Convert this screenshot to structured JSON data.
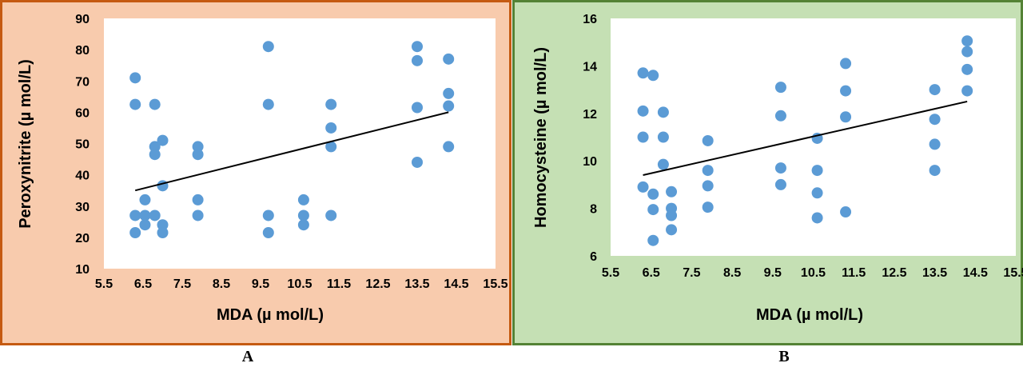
{
  "panels": [
    {
      "letter": "A",
      "frame_color": "#c55a11",
      "bg_color": "#f8cbad"
    },
    {
      "letter": "B",
      "frame_color": "#548235",
      "bg_color": "#c5e0b4"
    }
  ],
  "chart_data": [
    {
      "type": "scatter",
      "title": "",
      "xlabel": "MDA (µ mol/L)",
      "ylabel": "Peroxynitrite (µ mol/L)",
      "xlim": [
        5.5,
        15.5
      ],
      "ylim": [
        10,
        90
      ],
      "x_ticks": [
        "5.5",
        "6.5",
        "7.5",
        "8.5",
        "9.5",
        "10.5",
        "11.5",
        "12.5",
        "13.5",
        "14.5",
        "15.5"
      ],
      "y_ticks": [
        "10",
        "20",
        "30",
        "40",
        "50",
        "60",
        "70",
        "80",
        "90"
      ],
      "grid": false,
      "marker_color": "#5b9bd5",
      "points": [
        {
          "x": 6.3,
          "y": 71
        },
        {
          "x": 6.3,
          "y": 62.5
        },
        {
          "x": 6.3,
          "y": 27
        },
        {
          "x": 6.3,
          "y": 21.5
        },
        {
          "x": 6.55,
          "y": 32
        },
        {
          "x": 6.55,
          "y": 27
        },
        {
          "x": 6.55,
          "y": 24
        },
        {
          "x": 6.8,
          "y": 62.5
        },
        {
          "x": 6.8,
          "y": 49
        },
        {
          "x": 6.8,
          "y": 46.5
        },
        {
          "x": 6.8,
          "y": 27
        },
        {
          "x": 7.0,
          "y": 51
        },
        {
          "x": 7.0,
          "y": 36.5
        },
        {
          "x": 7.0,
          "y": 24
        },
        {
          "x": 7.0,
          "y": 21.5
        },
        {
          "x": 7.9,
          "y": 49
        },
        {
          "x": 7.9,
          "y": 46.5
        },
        {
          "x": 7.9,
          "y": 32
        },
        {
          "x": 7.9,
          "y": 27
        },
        {
          "x": 9.7,
          "y": 81
        },
        {
          "x": 9.7,
          "y": 62.5
        },
        {
          "x": 9.7,
          "y": 27
        },
        {
          "x": 9.7,
          "y": 21.5
        },
        {
          "x": 10.6,
          "y": 32
        },
        {
          "x": 10.6,
          "y": 27
        },
        {
          "x": 10.6,
          "y": 24
        },
        {
          "x": 11.3,
          "y": 62.5
        },
        {
          "x": 11.3,
          "y": 55
        },
        {
          "x": 11.3,
          "y": 49
        },
        {
          "x": 11.3,
          "y": 27
        },
        {
          "x": 13.5,
          "y": 81
        },
        {
          "x": 13.5,
          "y": 76.5
        },
        {
          "x": 13.5,
          "y": 61.5
        },
        {
          "x": 13.5,
          "y": 44
        },
        {
          "x": 14.3,
          "y": 77
        },
        {
          "x": 14.3,
          "y": 66
        },
        {
          "x": 14.3,
          "y": 62
        },
        {
          "x": 14.3,
          "y": 49
        }
      ],
      "trendline": {
        "x": [
          6.3,
          14.3
        ],
        "y": [
          35,
          60
        ]
      }
    },
    {
      "type": "scatter",
      "title": "",
      "xlabel": "MDA (µ mol/L)",
      "ylabel": "Homocysteine (µ mol/L)",
      "xlim": [
        5.5,
        15.5
      ],
      "ylim": [
        6,
        16
      ],
      "x_ticks": [
        "5.5",
        "6.5",
        "7.5",
        "8.5",
        "9.5",
        "10.5",
        "11.5",
        "12.5",
        "13.5",
        "14.5",
        "15.5"
      ],
      "y_ticks": [
        "6",
        "8",
        "10",
        "12",
        "14",
        "16"
      ],
      "grid": false,
      "marker_color": "#5b9bd5",
      "points": [
        {
          "x": 6.3,
          "y": 13.7
        },
        {
          "x": 6.3,
          "y": 12.1
        },
        {
          "x": 6.3,
          "y": 11.0
        },
        {
          "x": 6.3,
          "y": 8.9
        },
        {
          "x": 6.55,
          "y": 13.6
        },
        {
          "x": 6.55,
          "y": 8.6
        },
        {
          "x": 6.55,
          "y": 7.95
        },
        {
          "x": 6.55,
          "y": 6.65
        },
        {
          "x": 6.8,
          "y": 12.05
        },
        {
          "x": 6.8,
          "y": 11.0
        },
        {
          "x": 6.8,
          "y": 9.85
        },
        {
          "x": 7.0,
          "y": 8.7
        },
        {
          "x": 7.0,
          "y": 8.0
        },
        {
          "x": 7.0,
          "y": 7.7
        },
        {
          "x": 7.0,
          "y": 7.1
        },
        {
          "x": 7.9,
          "y": 10.85
        },
        {
          "x": 7.9,
          "y": 9.6
        },
        {
          "x": 7.9,
          "y": 8.95
        },
        {
          "x": 7.9,
          "y": 8.05
        },
        {
          "x": 9.7,
          "y": 13.1
        },
        {
          "x": 9.7,
          "y": 11.9
        },
        {
          "x": 9.7,
          "y": 9.7
        },
        {
          "x": 9.7,
          "y": 9.0
        },
        {
          "x": 10.6,
          "y": 10.95
        },
        {
          "x": 10.6,
          "y": 9.6
        },
        {
          "x": 10.6,
          "y": 8.65
        },
        {
          "x": 10.6,
          "y": 7.6
        },
        {
          "x": 11.3,
          "y": 14.1
        },
        {
          "x": 11.3,
          "y": 12.95
        },
        {
          "x": 11.3,
          "y": 11.85
        },
        {
          "x": 11.3,
          "y": 7.85
        },
        {
          "x": 13.5,
          "y": 13.0
        },
        {
          "x": 13.5,
          "y": 11.75
        },
        {
          "x": 13.5,
          "y": 10.7
        },
        {
          "x": 13.5,
          "y": 9.6
        },
        {
          "x": 14.3,
          "y": 15.05
        },
        {
          "x": 14.3,
          "y": 14.6
        },
        {
          "x": 14.3,
          "y": 13.85
        },
        {
          "x": 14.3,
          "y": 12.95
        }
      ],
      "trendline": {
        "x": [
          6.3,
          14.3
        ],
        "y": [
          9.4,
          12.5
        ]
      }
    }
  ]
}
